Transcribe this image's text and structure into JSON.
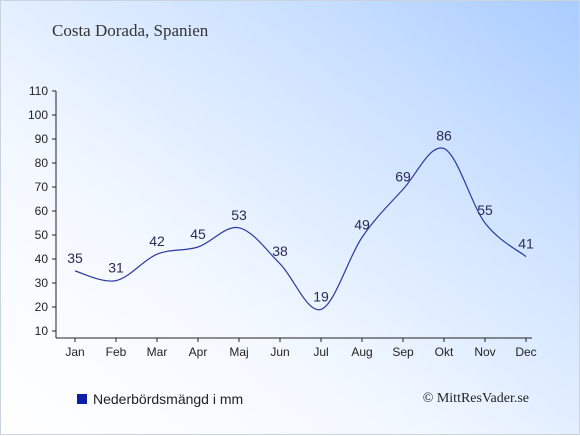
{
  "chart_data": {
    "type": "line",
    "title": "Costa Dorada, Spanien",
    "categories": [
      "Jan",
      "Feb",
      "Mar",
      "Apr",
      "Maj",
      "Jun",
      "Jul",
      "Aug",
      "Sep",
      "Okt",
      "Nov",
      "Dec"
    ],
    "series": [
      {
        "name": "Nederbördsmängd i mm",
        "values": [
          35,
          31,
          42,
          45,
          53,
          38,
          19,
          49,
          69,
          86,
          55,
          41
        ]
      }
    ],
    "ylim": [
      10,
      110
    ],
    "yticks": [
      10,
      20,
      30,
      40,
      50,
      60,
      70,
      80,
      90,
      100,
      110
    ],
    "grid": false,
    "legend_position": "bottom-left",
    "line_color": "#2a3aa0",
    "legend_color": "#0b1ea8"
  },
  "credit": "© MittResVader.se"
}
